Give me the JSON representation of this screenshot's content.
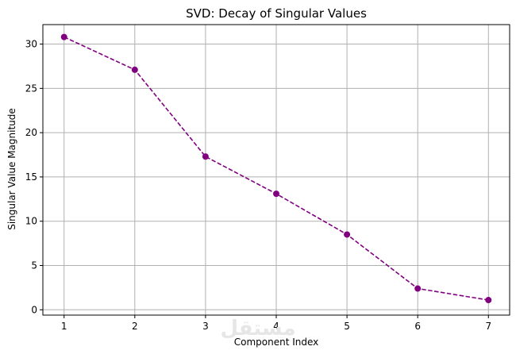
{
  "chart_data": {
    "type": "line",
    "title": "SVD: Decay of Singular Values",
    "xlabel": "Component Index",
    "ylabel": "Singular Value Magnitude",
    "x": [
      1,
      2,
      3,
      4,
      5,
      6,
      7
    ],
    "series": [
      {
        "values": [
          30.8,
          27.1,
          17.3,
          13.1,
          8.5,
          2.4,
          1.1
        ]
      }
    ],
    "xlim": [
      0.7,
      7.3
    ],
    "ylim": [
      -0.6,
      32.2
    ],
    "xticks": [
      1,
      2,
      3,
      4,
      5,
      6,
      7
    ],
    "yticks": [
      0,
      5,
      10,
      15,
      20,
      25,
      30
    ],
    "grid": true,
    "line_style": "dashed",
    "marker": "circle",
    "color": "#800080"
  },
  "watermark": "مستقل"
}
